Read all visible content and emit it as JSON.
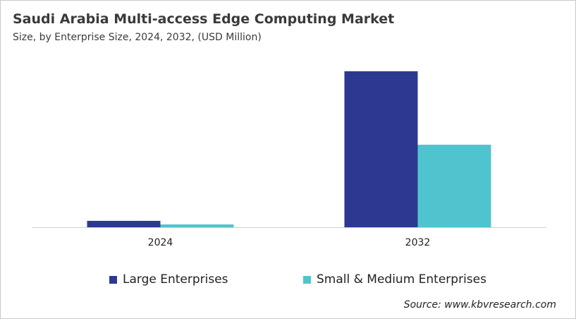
{
  "title": "Saudi Arabia Multi-access Edge Computing Market",
  "subtitle": "Size, by Enterprise Size, 2024, 2032, (USD Million)",
  "source": "Source: www.kbvresearch.com",
  "chart_data": {
    "type": "bar",
    "title": "Saudi Arabia Multi-access Edge Computing Market",
    "subtitle": "Size, by Enterprise Size, 2024, 2032, (USD Million)",
    "categories": [
      "2024",
      "2032"
    ],
    "series": [
      {
        "name": "Large Enterprises",
        "color": "#2b3990",
        "values": [
          4.1,
          100
        ]
      },
      {
        "name": "Small & Medium Enterprises",
        "color": "#4fc4cf",
        "values": [
          1.8,
          52.9
        ]
      }
    ],
    "ylim": [
      0,
      100
    ],
    "grid": false,
    "legend": "bottom"
  }
}
